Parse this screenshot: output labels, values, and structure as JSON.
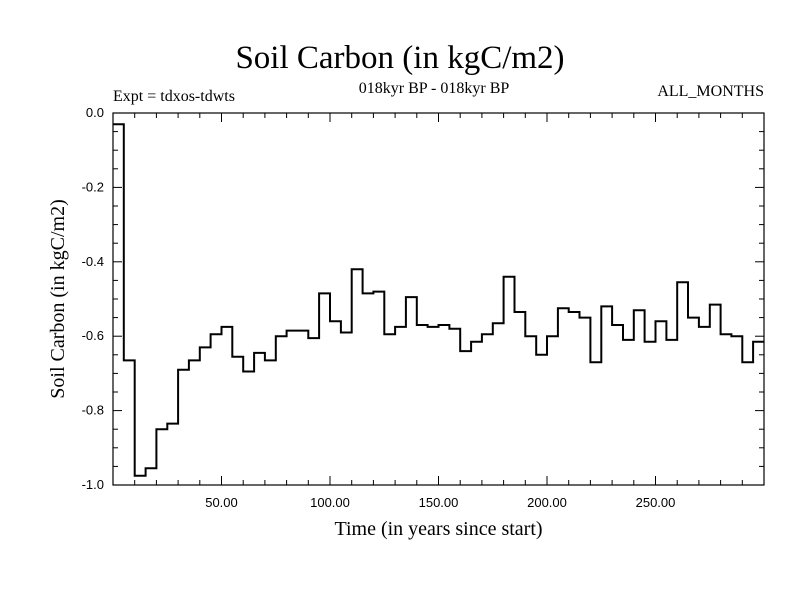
{
  "chart_data": {
    "type": "line",
    "step": true,
    "title": "Soil Carbon (in kgC/m2)",
    "subtitle": "018kyr BP - 018kyr BP",
    "annotations": [
      "Expt = tdxos-tdwts",
      "ALL_MONTHS"
    ],
    "xlabel": "Time (in years since start)",
    "ylabel": "Soil Carbon (in kgC/m2)",
    "xlim": [
      0,
      300
    ],
    "ylim": [
      -1.0,
      0.0
    ],
    "xticks": [
      50,
      100,
      150,
      200,
      250
    ],
    "xtick_labels": [
      "50.00",
      "100.00",
      "150.00",
      "200.00",
      "250.00"
    ],
    "yticks": [
      0.0,
      -0.2,
      -0.4,
      -0.6,
      -0.8,
      -1.0
    ],
    "ytick_labels": [
      "0.0",
      "-0.2",
      "-0.4",
      "-0.6",
      "-0.8",
      "-1.0"
    ],
    "grid": false,
    "bin_width": 5,
    "series": [
      {
        "x": [
          0,
          5,
          10,
          15,
          20,
          25,
          30,
          35,
          40,
          45,
          50,
          55,
          60,
          65,
          70,
          75,
          80,
          85,
          90,
          95,
          100,
          105,
          110,
          115,
          120,
          125,
          130,
          135,
          140,
          145,
          150,
          155,
          160,
          165,
          170,
          175,
          180,
          185,
          190,
          195,
          200,
          205,
          210,
          215,
          220,
          225,
          230,
          235,
          240,
          245,
          250,
          255,
          260,
          265,
          270,
          275,
          280,
          285,
          290,
          295
        ],
        "values": [
          -0.03,
          -0.665,
          -0.975,
          -0.955,
          -0.85,
          -0.835,
          -0.69,
          -0.665,
          -0.63,
          -0.595,
          -0.575,
          -0.655,
          -0.695,
          -0.645,
          -0.665,
          -0.6,
          -0.585,
          -0.585,
          -0.605,
          -0.485,
          -0.56,
          -0.59,
          -0.42,
          -0.485,
          -0.48,
          -0.595,
          -0.575,
          -0.495,
          -0.57,
          -0.575,
          -0.57,
          -0.58,
          -0.64,
          -0.615,
          -0.595,
          -0.565,
          -0.44,
          -0.535,
          -0.6,
          -0.65,
          -0.6,
          -0.525,
          -0.535,
          -0.55,
          -0.67,
          -0.52,
          -0.57,
          -0.61,
          -0.53,
          -0.615,
          -0.56,
          -0.61,
          -0.455,
          -0.55,
          -0.575,
          -0.515,
          -0.595,
          -0.6,
          -0.67,
          -0.615
        ]
      }
    ]
  }
}
